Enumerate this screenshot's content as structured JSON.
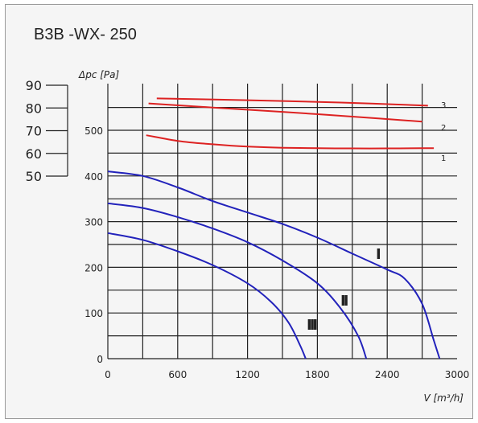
{
  "chart_data": {
    "type": "line",
    "title": "B3B -WX- 250",
    "xlabel": "V [m³/h]",
    "ylabel": "Δpc [Pa]",
    "xlim": [
      0,
      3000
    ],
    "ylim": [
      0,
      600
    ],
    "x_ticks": [
      "0",
      "600",
      "1200",
      "1800",
      "2400",
      "3000"
    ],
    "y_ticks": [
      "0",
      "100",
      "200",
      "300",
      "400",
      "500"
    ],
    "secondary_axis": {
      "ticks": [
        "90",
        "80",
        "70",
        "60",
        "50"
      ],
      "range": [
        50,
        90
      ]
    },
    "grid": true,
    "colors": {
      "fan_curves": "#2222bb",
      "noise_curves": "#dd2222"
    },
    "series": [
      {
        "name": "I",
        "group": "fan",
        "x": [
          0,
          300,
          600,
          900,
          1200,
          1500,
          1800,
          2100,
          2400,
          2550,
          2700,
          2800,
          2850
        ],
        "y": [
          410,
          400,
          375,
          345,
          320,
          295,
          265,
          230,
          195,
          175,
          120,
          40,
          0
        ]
      },
      {
        "name": "II",
        "group": "fan",
        "x": [
          0,
          300,
          600,
          900,
          1200,
          1500,
          1800,
          2000,
          2150,
          2220
        ],
        "y": [
          340,
          330,
          310,
          285,
          255,
          215,
          165,
          110,
          50,
          0
        ]
      },
      {
        "name": "III",
        "group": "fan",
        "x": [
          0,
          300,
          600,
          900,
          1200,
          1400,
          1550,
          1650,
          1700
        ],
        "y": [
          275,
          260,
          235,
          205,
          165,
          125,
          80,
          30,
          0
        ]
      },
      {
        "name": "1",
        "group": "noise",
        "x": [
          330,
          600,
          900,
          1200,
          1500,
          1800,
          2100,
          2400,
          2700,
          2800
        ],
        "y": [
          68,
          65.5,
          64,
          63,
          62.5,
          62.3,
          62.2,
          62.2,
          62.3,
          62.3
        ]
      },
      {
        "name": "2",
        "group": "noise",
        "x": [
          350,
          900,
          1500,
          2100,
          2700
        ],
        "y": [
          82,
          80.2,
          78.3,
          76.2,
          74
        ]
      },
      {
        "name": "3",
        "group": "noise",
        "x": [
          420,
          1200,
          2000,
          2750
        ],
        "y": [
          84.2,
          83.4,
          82.4,
          81
        ]
      }
    ]
  }
}
